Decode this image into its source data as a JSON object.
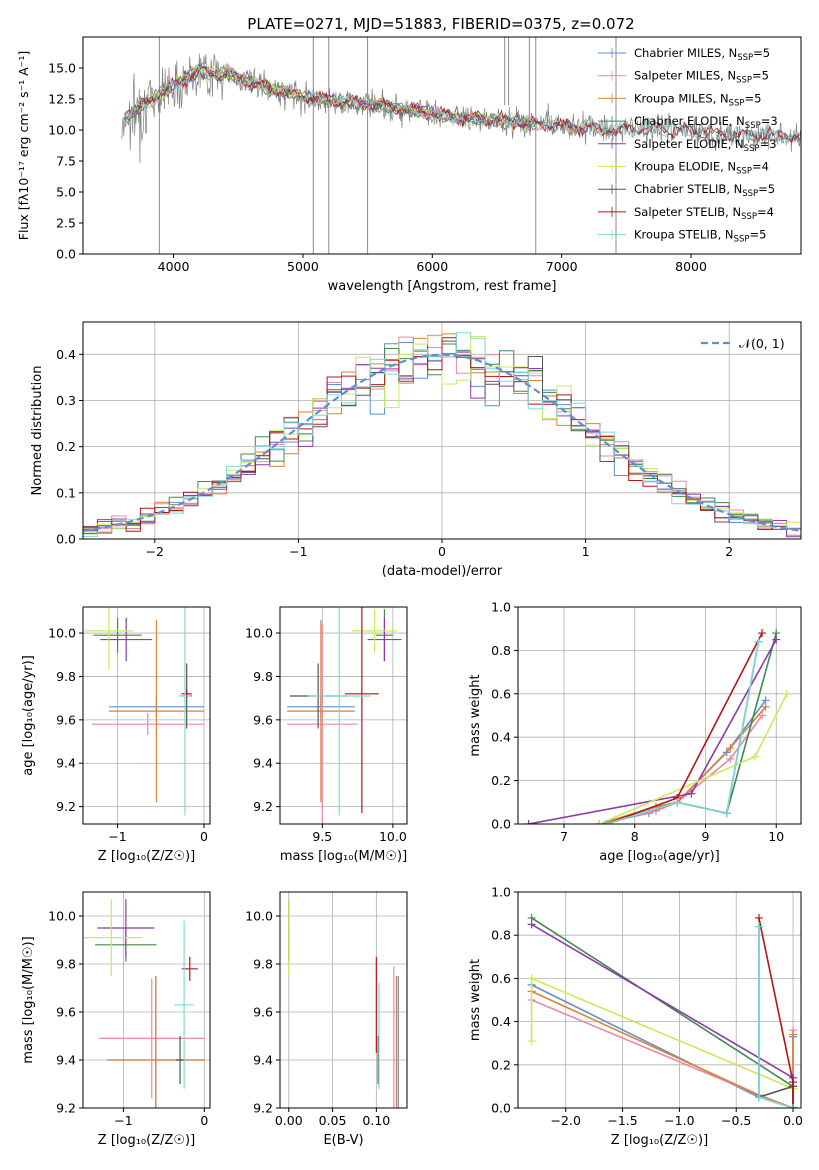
{
  "figure": {
    "title": "PLATE=0271, MJD=51883, FIBERID=0375, z=0.072"
  },
  "model_colors": {
    "Chabrier MILES": "#5b8fd6",
    "Salpeter MILES": "#e88aa6",
    "Kroupa MILES": "#d9823a",
    "Chabrier ELODIE": "#3f8a4e",
    "Salpeter ELODIE": "#8e3aa8",
    "Kroupa ELODIE": "#cde85a",
    "Chabrier STELIB": "#555555",
    "Salpeter STELIB": "#b51515",
    "Kroupa STELIB": "#7fd9d9",
    "data": "#808080",
    "gaussian": "#5b8fd6"
  },
  "chart_data": [
    {
      "id": "spectrum",
      "type": "line",
      "title": "PLATE=0271, MJD=51883, FIBERID=0375, z=0.072",
      "xlabel": "wavelength [Angstrom, rest frame]",
      "ylabel": "Flux [fλ10⁻¹⁷ erg cm⁻² s⁻¹ A⁻¹]",
      "xlim": [
        3300,
        8850
      ],
      "ylim": [
        0,
        17.5
      ],
      "xticks": [
        4000,
        5000,
        6000,
        7000,
        8000
      ],
      "yticks": [
        0.0,
        2.5,
        5.0,
        7.5,
        10.0,
        12.5,
        15.0
      ],
      "grid": false,
      "legend_position": "top-right",
      "continuum": [
        [
          3600,
          10.8
        ],
        [
          3700,
          11.5
        ],
        [
          3800,
          12.2
        ],
        [
          3900,
          13.0
        ],
        [
          4000,
          13.6
        ],
        [
          4100,
          14.2
        ],
        [
          4200,
          14.8
        ],
        [
          4300,
          14.5
        ],
        [
          4400,
          14.6
        ],
        [
          4500,
          14.2
        ],
        [
          4700,
          13.5
        ],
        [
          5000,
          12.7
        ],
        [
          5300,
          12.3
        ],
        [
          5600,
          12.0
        ],
        [
          5900,
          11.5
        ],
        [
          6200,
          11.0
        ],
        [
          6500,
          10.8
        ],
        [
          6800,
          10.5
        ],
        [
          7100,
          10.3
        ],
        [
          7400,
          10.0
        ],
        [
          7700,
          10.2
        ],
        [
          8000,
          9.9
        ],
        [
          8300,
          9.6
        ],
        [
          8600,
          9.6
        ],
        [
          8850,
          9.5
        ]
      ],
      "series": [
        {
          "name": "Chabrier MILES, N_SSP=5",
          "label_main": "Chabrier MILES, N",
          "label_sub": "SSP",
          "label_end": "=5"
        },
        {
          "name": "Salpeter MILES, N_SSP=5",
          "label_main": "Salpeter MILES, N",
          "label_sub": "SSP",
          "label_end": "=5"
        },
        {
          "name": "Kroupa MILES, N_SSP=5",
          "label_main": "Kroupa MILES, N",
          "label_sub": "SSP",
          "label_end": "=5"
        },
        {
          "name": "Chabrier ELODIE, N_SSP=3",
          "label_main": "Chabrier ELODIE, N",
          "label_sub": "SSP",
          "label_end": "=3"
        },
        {
          "name": "Salpeter ELODIE, N_SSP=3",
          "label_main": "Salpeter ELODIE, N",
          "label_sub": "SSP",
          "label_end": "=3"
        },
        {
          "name": "Kroupa ELODIE, N_SSP=4",
          "label_main": "Kroupa ELODIE, N",
          "label_sub": "SSP",
          "label_end": "=4"
        },
        {
          "name": "Chabrier STELIB, N_SSP=5",
          "label_main": "Chabrier STELIB, N",
          "label_sub": "SSP",
          "label_end": "=5"
        },
        {
          "name": "Salpeter STELIB, N_SSP=4",
          "label_main": "Salpeter STELIB, N",
          "label_sub": "SSP",
          "label_end": "=4"
        },
        {
          "name": "Kroupa STELIB, N_SSP=5",
          "label_main": "Kroupa STELIB, N",
          "label_sub": "SSP",
          "label_end": "=5"
        }
      ]
    },
    {
      "id": "residuals",
      "type": "histogram",
      "xlabel": "(data-model)/error",
      "ylabel": "Normed distribution",
      "xlim": [
        -2.5,
        2.5
      ],
      "ylim": [
        0,
        0.47
      ],
      "xticks": [
        -2,
        -1,
        0,
        1,
        2
      ],
      "yticks": [
        0.0,
        0.1,
        0.2,
        0.3,
        0.4
      ],
      "grid": true,
      "legend_position": "top-right",
      "legend": "𝒩(0, 1)",
      "bin_width": 0.1,
      "reference_curve": {
        "name": "𝒩(0, 1)",
        "mean": 0,
        "sigma": 1
      }
    },
    {
      "id": "age_vs_Z",
      "type": "errorbar",
      "xlabel": "Z [log₁₀(Z/Z☉)]",
      "ylabel": "age  [log₁₀(age/yr)]",
      "xlim": [
        -1.4,
        0.07
      ],
      "ylim": [
        9.12,
        10.12
      ],
      "xticks": [
        -1,
        0
      ],
      "yticks": [
        9.2,
        9.4,
        9.6,
        9.8,
        10.0
      ],
      "grid": true,
      "points": [
        {
          "model": "Chabrier MILES",
          "x": -0.55,
          "xerr": 0.55,
          "y": 9.66,
          "yerr": 0.05
        },
        {
          "model": "Salpeter MILES",
          "x": -0.65,
          "xerr": 0.65,
          "y": 9.58,
          "yerr": 0.05
        },
        {
          "model": "Kroupa MILES",
          "x": -0.55,
          "xerr": 0.55,
          "y": 9.64,
          "yerr": 0.42
        },
        {
          "model": "Chabrier ELODIE",
          "x": -1.0,
          "xerr": 0.28,
          "y": 9.99,
          "yerr": 0.08
        },
        {
          "model": "Salpeter ELODIE",
          "x": -0.9,
          "xerr": 0.3,
          "y": 9.97,
          "yerr": 0.1
        },
        {
          "model": "Kroupa ELODIE",
          "x": -1.1,
          "xerr": 0.28,
          "y": 10.01,
          "yerr": 0.18
        },
        {
          "model": "Chabrier STELIB",
          "x": -0.2,
          "xerr": 0.06,
          "y": 9.71,
          "yerr": 0.15
        },
        {
          "model": "Salpeter STELIB",
          "x": -0.2,
          "xerr": 0.06,
          "y": 9.72,
          "yerr": 0.02
        },
        {
          "model": "Kroupa STELIB",
          "x": -0.22,
          "xerr": 0.07,
          "y": 9.71,
          "yerr": 0.55
        }
      ]
    },
    {
      "id": "age_vs_mass",
      "type": "errorbar",
      "xlabel": "mass [log₁₀(M/M☉)]",
      "ylabel": "",
      "xlim": [
        9.2,
        10.1
      ],
      "ylim": [
        9.12,
        10.12
      ],
      "xticks": [
        9.5,
        10.0
      ],
      "yticks": [
        9.2,
        9.4,
        9.6,
        9.8,
        10.0
      ],
      "grid": true,
      "points": [
        {
          "model": "Chabrier MILES",
          "x": 9.49,
          "xerr": 0.24,
          "y": 9.66,
          "yerr": 0.05
        },
        {
          "model": "Salpeter MILES",
          "x": 9.5,
          "xerr": 0.25,
          "y": 9.58,
          "yerr": 0.46
        },
        {
          "model": "Kroupa MILES",
          "x": 9.49,
          "xerr": 0.24,
          "y": 9.64,
          "yerr": 0.42
        },
        {
          "model": "Chabrier ELODIE",
          "x": 9.94,
          "xerr": 0.06,
          "y": 9.99,
          "yerr": 0.12
        },
        {
          "model": "Salpeter ELODIE",
          "x": 9.94,
          "xerr": 0.12,
          "y": 9.97,
          "yerr": 0.1
        },
        {
          "model": "Kroupa ELODIE",
          "x": 9.87,
          "xerr": 0.16,
          "y": 10.01,
          "yerr": 0.1
        },
        {
          "model": "Chabrier STELIB",
          "x": 9.47,
          "xerr": 0.2,
          "y": 9.71,
          "yerr": 0.15
        },
        {
          "model": "Salpeter STELIB",
          "x": 9.78,
          "xerr": 0.12,
          "y": 9.72,
          "yerr": 0.55
        },
        {
          "model": "Kroupa STELIB",
          "x": 9.62,
          "xerr": 0.22,
          "y": 9.71,
          "yerr": 0.55
        }
      ]
    },
    {
      "id": "mass_weight_vs_age",
      "type": "line",
      "xlabel": "age  [log₁₀(age/yr)]",
      "ylabel": "mass weight",
      "xlim": [
        6.35,
        10.35
      ],
      "ylim": [
        0,
        1.0
      ],
      "xticks": [
        7,
        8,
        9,
        10
      ],
      "yticks": [
        0.0,
        0.2,
        0.4,
        0.6,
        0.8,
        1.0
      ],
      "grid": true,
      "series": [
        {
          "model": "Chabrier MILES",
          "points": [
            [
              7.5,
              0.0
            ],
            [
              8.2,
              0.05
            ],
            [
              8.6,
              0.1
            ],
            [
              9.3,
              0.33
            ],
            [
              9.85,
              0.57
            ]
          ]
        },
        {
          "model": "Salpeter MILES",
          "points": [
            [
              7.5,
              0.0
            ],
            [
              8.3,
              0.06
            ],
            [
              8.6,
              0.1
            ],
            [
              9.35,
              0.3
            ],
            [
              9.8,
              0.5
            ]
          ]
        },
        {
          "model": "Kroupa MILES",
          "points": [
            [
              7.5,
              0.0
            ],
            [
              8.3,
              0.08
            ],
            [
              8.6,
              0.1
            ],
            [
              9.35,
              0.35
            ],
            [
              9.85,
              0.54
            ]
          ]
        },
        {
          "model": "Chabrier ELODIE",
          "points": [
            [
              7.6,
              0.0
            ],
            [
              8.6,
              0.1
            ],
            [
              9.3,
              0.05
            ],
            [
              10.0,
              0.88
            ]
          ]
        },
        {
          "model": "Salpeter ELODIE",
          "points": [
            [
              6.5,
              0.0
            ],
            [
              8.8,
              0.14
            ],
            [
              10.0,
              0.85
            ]
          ]
        },
        {
          "model": "Kroupa ELODIE",
          "points": [
            [
              7.5,
              0.0
            ],
            [
              9.7,
              0.31
            ],
            [
              10.15,
              0.6
            ]
          ]
        },
        {
          "model": "Chabrier STELIB",
          "points": [
            [
              7.6,
              0.0
            ],
            [
              8.6,
              0.1
            ],
            [
              9.3,
              0.05
            ],
            [
              9.75,
              0.84
            ]
          ]
        },
        {
          "model": "Salpeter STELIB",
          "points": [
            [
              7.6,
              0.0
            ],
            [
              8.6,
              0.12
            ],
            [
              9.8,
              0.88
            ]
          ]
        },
        {
          "model": "Kroupa STELIB",
          "points": [
            [
              7.6,
              0.0
            ],
            [
              8.6,
              0.1
            ],
            [
              9.3,
              0.05
            ],
            [
              9.75,
              0.84
            ]
          ]
        }
      ]
    },
    {
      "id": "mass_vs_Z",
      "type": "errorbar",
      "xlabel": "Z [log₁₀(Z/Z☉)]",
      "ylabel": "mass [log₁₀(M/M☉)]",
      "xlim": [
        -1.5,
        0.07
      ],
      "ylim": [
        9.2,
        10.1
      ],
      "xticks": [
        -1,
        0
      ],
      "yticks": [
        9.2,
        9.4,
        9.6,
        9.8,
        10.0
      ],
      "grid": true,
      "points": [
        {
          "model": "Chabrier MILES",
          "x": -0.6,
          "xerr": 0.6,
          "y": 9.4,
          "yerr": 0.35
        },
        {
          "model": "Salpeter MILES",
          "x": -0.65,
          "xerr": 0.65,
          "y": 9.49,
          "yerr": 0.25
        },
        {
          "model": "Kroupa MILES",
          "x": -0.6,
          "xerr": 0.6,
          "y": 9.4,
          "yerr": 0.35
        },
        {
          "model": "Chabrier ELODIE",
          "x": -0.97,
          "xerr": 0.38,
          "y": 9.88,
          "yerr": 0.07
        },
        {
          "model": "Salpeter ELODIE",
          "x": -0.97,
          "xerr": 0.35,
          "y": 9.95,
          "yerr": 0.12
        },
        {
          "model": "Kroupa ELODIE",
          "x": -1.15,
          "xerr": 0.38,
          "y": 9.91,
          "yerr": 0.16
        },
        {
          "model": "Chabrier STELIB",
          "x": -0.3,
          "xerr": 0.05,
          "y": 9.4,
          "yerr": 0.1
        },
        {
          "model": "Salpeter STELIB",
          "x": -0.18,
          "xerr": 0.1,
          "y": 9.78,
          "yerr": 0.05
        },
        {
          "model": "Kroupa STELIB",
          "x": -0.25,
          "xerr": 0.12,
          "y": 9.63,
          "yerr": 0.35
        }
      ]
    },
    {
      "id": "mass_vs_EBV",
      "type": "errorbar",
      "xlabel": "E(B-V)",
      "ylabel": "",
      "xlim": [
        -0.01,
        0.135
      ],
      "ylim": [
        9.2,
        10.1
      ],
      "xticks": [
        0.0,
        0.05,
        0.1
      ],
      "yticks": [
        9.2,
        9.4,
        9.6,
        9.8,
        10.0
      ],
      "grid": true,
      "points": [
        {
          "model": "Chabrier MILES",
          "x": 0.125,
          "xerr": 0,
          "y": 9.4,
          "yerr": 0.35
        },
        {
          "model": "Salpeter MILES",
          "x": 0.12,
          "xerr": 0,
          "y": 9.49,
          "yerr": 0.3
        },
        {
          "model": "Kroupa MILES",
          "x": 0.123,
          "xerr": 0,
          "y": 9.4,
          "yerr": 0.35
        },
        {
          "model": "Chabrier ELODIE",
          "x": 0.0,
          "xerr": 0,
          "y": 9.88,
          "yerr": 0.07
        },
        {
          "model": "Salpeter ELODIE",
          "x": 0.0,
          "xerr": 0,
          "y": 9.95,
          "yerr": 0.12
        },
        {
          "model": "Kroupa ELODIE",
          "x": 0.0,
          "xerr": 0,
          "y": 9.91,
          "yerr": 0.16
        },
        {
          "model": "Chabrier STELIB",
          "x": 0.102,
          "xerr": 0,
          "y": 9.4,
          "yerr": 0.1
        },
        {
          "model": "Salpeter STELIB",
          "x": 0.1,
          "xerr": 0,
          "y": 9.63,
          "yerr": 0.2
        },
        {
          "model": "Kroupa STELIB",
          "x": 0.103,
          "xerr": 0,
          "y": 9.5,
          "yerr": 0.22
        }
      ]
    },
    {
      "id": "mass_weight_vs_Z",
      "type": "line",
      "xlabel": "Z [log₁₀(Z/Z☉)]",
      "ylabel": "mass weight",
      "xlim": [
        -2.42,
        0.07
      ],
      "ylim": [
        0,
        1.0
      ],
      "xticks": [
        -2.0,
        -1.5,
        -1.0,
        -0.5,
        0.0
      ],
      "yticks": [
        0.0,
        0.2,
        0.4,
        0.6,
        0.8,
        1.0
      ],
      "grid": true,
      "series": [
        {
          "model": "Chabrier MILES",
          "points": [
            [
              -2.3,
              0.57
            ],
            [
              -0.3,
              0.05
            ],
            [
              0.0,
              0.0
            ],
            [
              0.0,
              0.33
            ]
          ]
        },
        {
          "model": "Salpeter MILES",
          "points": [
            [
              -2.3,
              0.5
            ],
            [
              -0.3,
              0.06
            ],
            [
              0.0,
              0.0
            ],
            [
              0.0,
              0.36
            ]
          ]
        },
        {
          "model": "Kroupa MILES",
          "points": [
            [
              -2.3,
              0.54
            ],
            [
              -0.3,
              0.06
            ],
            [
              0.0,
              0.0
            ],
            [
              0.0,
              0.34
            ]
          ]
        },
        {
          "model": "Chabrier ELODIE",
          "points": [
            [
              -2.3,
              0.88
            ],
            [
              0.0,
              0.1
            ],
            [
              0.0,
              0.0
            ]
          ]
        },
        {
          "model": "Salpeter ELODIE",
          "points": [
            [
              -2.3,
              0.85
            ],
            [
              0.0,
              0.14
            ],
            [
              0.0,
              0.0
            ]
          ]
        },
        {
          "model": "Kroupa ELODIE",
          "points": [
            [
              -2.3,
              0.31
            ],
            [
              -2.3,
              0.6
            ],
            [
              0.0,
              0.09
            ]
          ]
        },
        {
          "model": "Chabrier STELIB",
          "points": [
            [
              -0.3,
              0.84
            ],
            [
              -0.3,
              0.05
            ],
            [
              0.0,
              0.1
            ],
            [
              0.0,
              0.0
            ]
          ]
        },
        {
          "model": "Salpeter STELIB",
          "points": [
            [
              -0.3,
              0.88
            ],
            [
              0.0,
              0.12
            ],
            [
              0.0,
              0.0
            ]
          ]
        },
        {
          "model": "Kroupa STELIB",
          "points": [
            [
              -0.3,
              0.84
            ],
            [
              -0.3,
              0.05
            ],
            [
              0.0,
              0.0
            ]
          ]
        }
      ]
    }
  ]
}
